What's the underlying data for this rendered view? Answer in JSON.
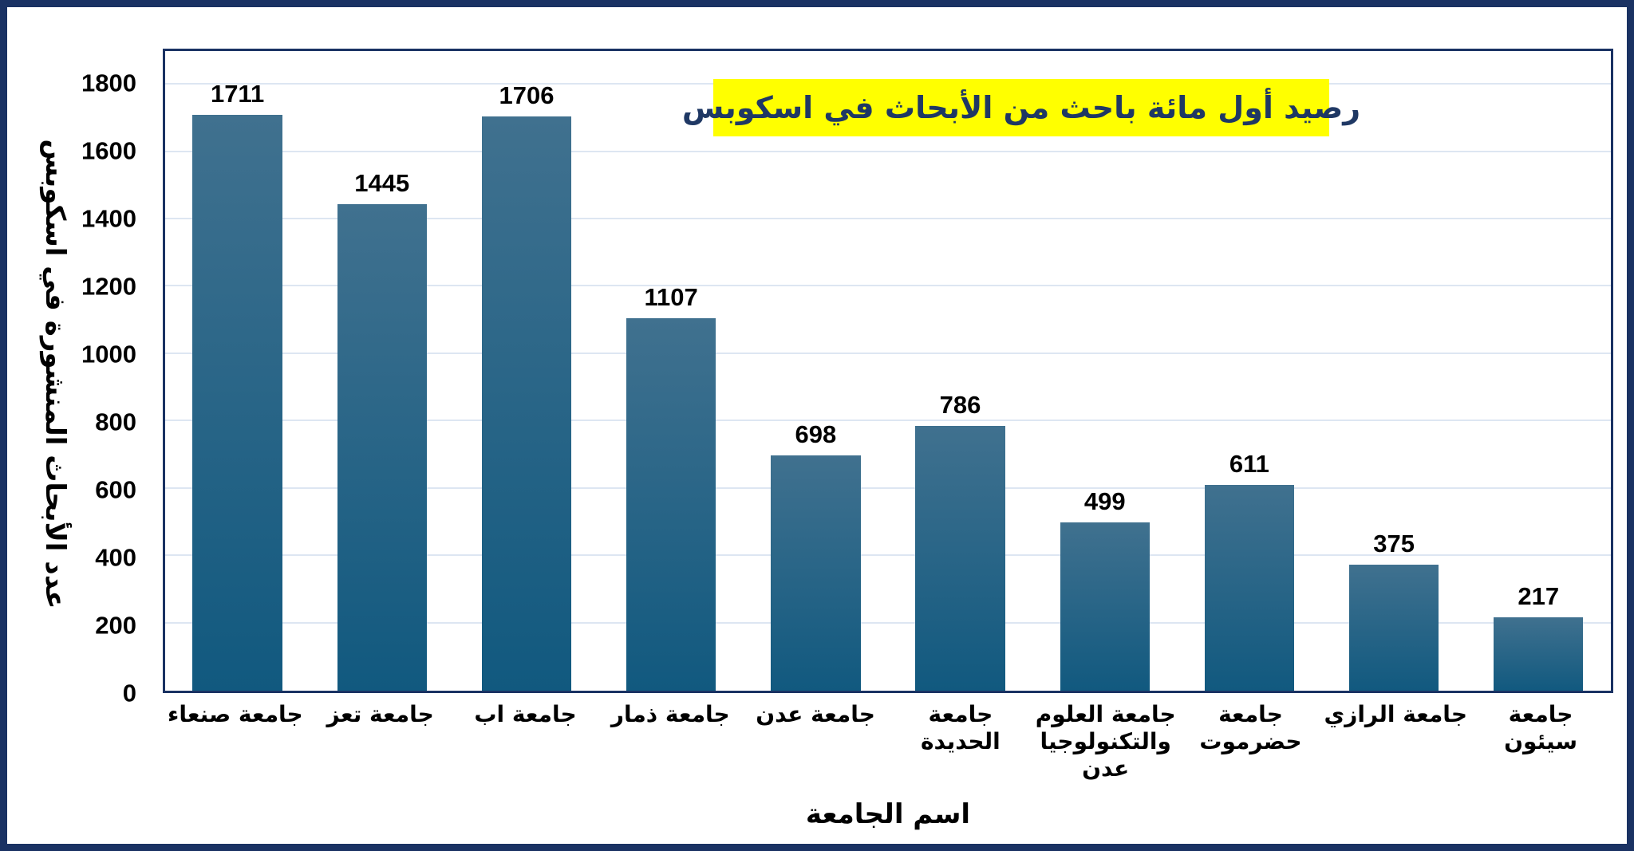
{
  "chart_data": {
    "type": "bar",
    "title": "رصيد أول مائة باحث من الأبحاث في اسكوبس",
    "xlabel": "اسم الجامعة",
    "ylabel": "عدد الأبحاث المنشورة في اسكوبس",
    "categories": [
      "جامعة صنعاء",
      "جامعة تعز",
      "جامعة اب",
      "جامعة ذمار",
      "جامعة عدن",
      "جامعة الحديدة",
      "جامعة العلوم والتكنولوجيا عدن",
      "جامعة حضرموت",
      "جامعة الرازي",
      "جامعة سيئون"
    ],
    "values": [
      1711,
      1445,
      1706,
      1107,
      698,
      786,
      499,
      611,
      375,
      217
    ],
    "yticks": [
      0,
      200,
      400,
      600,
      800,
      1000,
      1200,
      1400,
      1600,
      1800
    ],
    "ylim": [
      0,
      1900
    ],
    "grid": true,
    "legend": "none",
    "colors": {
      "bar_top": "#40718f",
      "bar_bottom": "#11597f",
      "title_bg": "#ffff00",
      "title_text": "#1f3864",
      "frame_border": "#1a3263",
      "gridline": "#dde6f2",
      "label_text": "#000000"
    }
  }
}
